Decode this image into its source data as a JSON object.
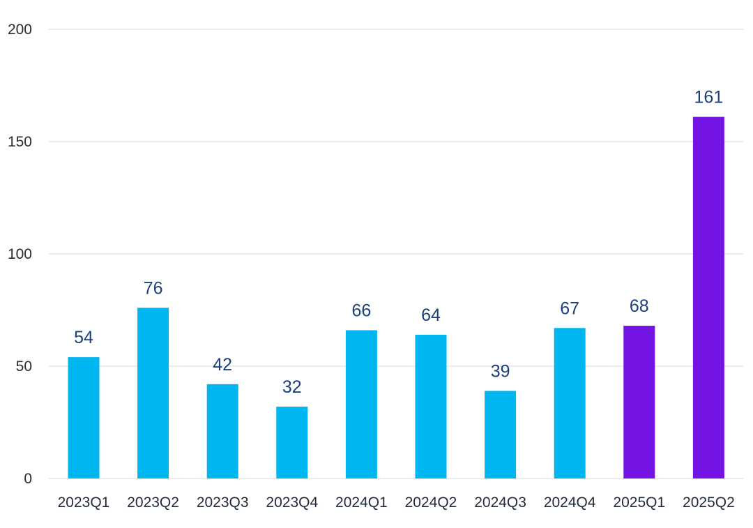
{
  "chart_data": {
    "type": "bar",
    "title": "",
    "xlabel": "",
    "ylabel": "",
    "categories": [
      "2023Q1",
      "2023Q2",
      "2023Q3",
      "2023Q4",
      "2024Q1",
      "2024Q2",
      "2024Q3",
      "2024Q4",
      "2025Q1",
      "2025Q2"
    ],
    "values": [
      54,
      76,
      42,
      32,
      66,
      64,
      39,
      67,
      68,
      161
    ],
    "ylim": [
      0,
      200
    ],
    "yticks": [
      "0",
      "50",
      "100",
      "150",
      "200"
    ],
    "grid": true,
    "legend": "none",
    "colors": {
      "default_bar": "#00b6f0",
      "highlight_bar": "#7414e4",
      "highlighted_categories": [
        "2025Q1",
        "2025Q2"
      ],
      "value_label": "#1c3f7a",
      "gridline": "#d9d9d9"
    }
  }
}
